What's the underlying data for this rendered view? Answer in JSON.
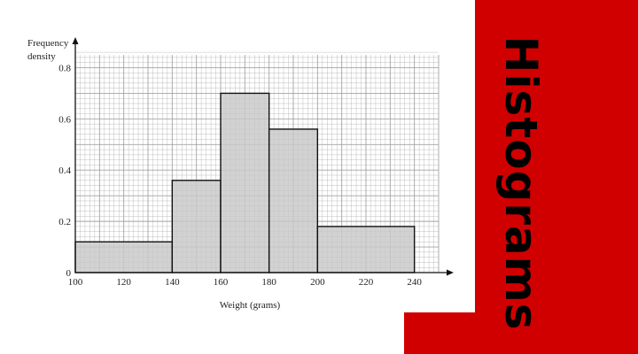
{
  "banner": {
    "title": "Histograms",
    "background": "#d10000"
  },
  "chart_data": {
    "type": "bar",
    "histogram": true,
    "ylabel_lines": [
      "Frequency",
      "density"
    ],
    "xlabel": "Weight (grams)",
    "xlim": [
      100,
      250
    ],
    "ylim": [
      0,
      0.85
    ],
    "xticks": [
      100,
      120,
      140,
      160,
      180,
      200,
      220,
      240
    ],
    "yticks": [
      0,
      0.2,
      0.4,
      0.6,
      0.8
    ],
    "ytick_labels": [
      "0",
      "0.2",
      "0.4",
      "0.6",
      "0.8"
    ],
    "bins": [
      {
        "from": 100,
        "to": 140,
        "density": 0.12
      },
      {
        "from": 140,
        "to": 160,
        "density": 0.36
      },
      {
        "from": 160,
        "to": 180,
        "density": 0.7
      },
      {
        "from": 180,
        "to": 200,
        "density": 0.56
      },
      {
        "from": 200,
        "to": 240,
        "density": 0.18
      }
    ],
    "grid": true,
    "bar_color": "#c8c8c8",
    "grid_color": "#9a9a9a"
  }
}
